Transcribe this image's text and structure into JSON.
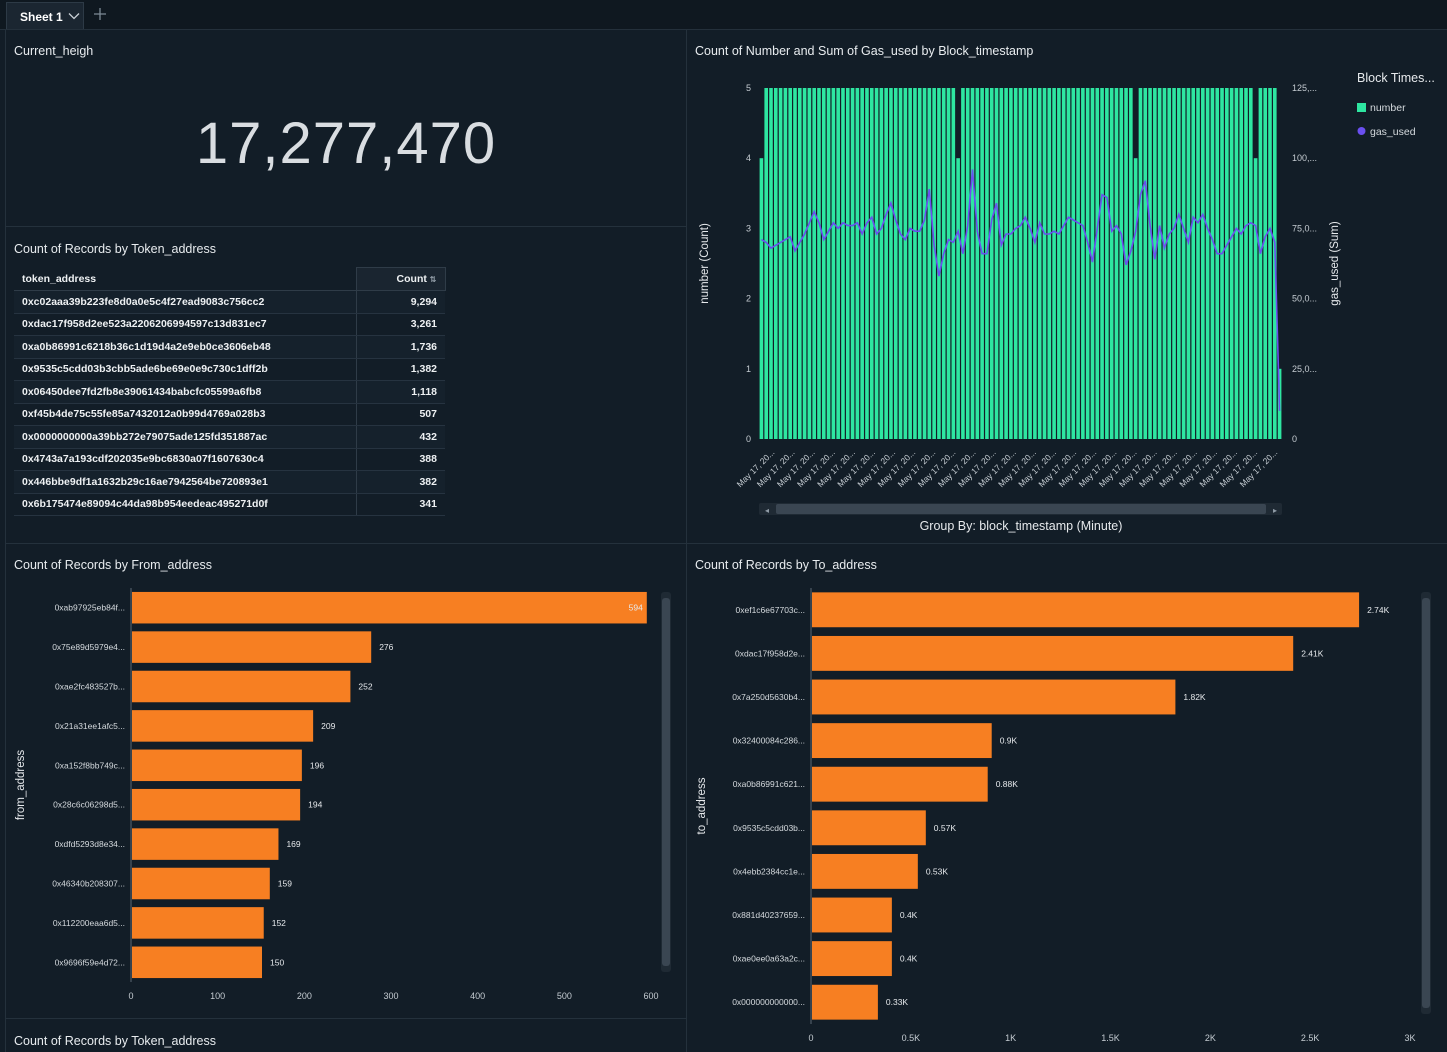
{
  "tabs": {
    "sheet_label": "Sheet 1"
  },
  "kpi": {
    "title": "Current_heigh",
    "value": "17,277,470"
  },
  "token_table": {
    "title": "Count of Records by Token_address",
    "col_address": "token_address",
    "col_count": "Count",
    "rows": [
      {
        "address": "0xc02aaa39b223fe8d0a0e5c4f27ead9083c756cc2",
        "count": "9,294"
      },
      {
        "address": "0xdac17f958d2ee523a2206206994597c13d831ec7",
        "count": "3,261"
      },
      {
        "address": "0xa0b86991c6218b36c1d19d4a2e9eb0ce3606eb48",
        "count": "1,736"
      },
      {
        "address": "0x9535c5cdd03b3cbb5ade6be69e0e9c730c1dff2b",
        "count": "1,382"
      },
      {
        "address": "0x06450dee7fd2fb8e39061434babcfc05599a6fb8",
        "count": "1,118"
      },
      {
        "address": "0xf45b4de75c55fe85a7432012a0b99d4769a028b3",
        "count": "507"
      },
      {
        "address": "0x0000000000a39bb272e79075ade125fd351887ac",
        "count": "432"
      },
      {
        "address": "0x4743a7a193cdf202035e9bc6830a07f1607630c4",
        "count": "388"
      },
      {
        "address": "0x446bbe9df1a1632b29c16ae7942564be720893e1",
        "count": "382"
      },
      {
        "address": "0x6b175474e89094c44da98b954eedeac495271d0f",
        "count": "341"
      }
    ]
  },
  "bottom_left_title": "Count of Records by Token_address",
  "colors": {
    "bar_green": "#2ee6a1",
    "line_purple": "#6a4ff0",
    "bar_orange": "#f77f22"
  },
  "chart_data": [
    {
      "type": "bar",
      "title": "Count of Number and Sum of Gas_used by Block_timestamp",
      "xlabel": "Group By: block_timestamp (Minute)",
      "ylabel": "number (Count)",
      "y2label": "gas_used (Sum)",
      "legend_title": "Block Times...",
      "legend": [
        "number",
        "gas_used"
      ],
      "x_tick_label": "May 17, 20...",
      "x_tick_count": 26,
      "ylim": [
        0,
        5
      ],
      "y_ticks": [
        "0",
        "1",
        "2",
        "3",
        "4",
        "5"
      ],
      "y2lim": [
        0,
        125
      ],
      "y2_ticks": [
        "0",
        "25,0...",
        "50,0...",
        "75,0...",
        "100,...",
        "125,..."
      ],
      "series": [
        {
          "name": "number",
          "values": [
            4,
            5,
            5,
            5,
            5,
            5,
            5,
            5,
            5,
            5,
            5,
            5,
            5,
            5,
            5,
            5,
            5,
            5,
            5,
            5,
            5,
            5,
            5,
            5,
            5,
            5,
            5,
            5,
            5,
            5,
            5,
            5,
            5,
            5,
            5,
            5,
            5,
            5,
            5,
            5,
            5,
            4,
            5,
            5,
            5,
            5,
            5,
            5,
            5,
            5,
            5,
            5,
            5,
            5,
            5,
            5,
            5,
            5,
            5,
            5,
            5,
            5,
            5,
            5,
            5,
            5,
            5,
            5,
            5,
            5,
            5,
            5,
            5,
            5,
            5,
            5,
            5,
            5,
            4,
            5,
            5,
            5,
            5,
            5,
            5,
            5,
            5,
            5,
            5,
            5,
            5,
            5,
            5,
            5,
            5,
            5,
            5,
            5,
            5,
            5,
            5,
            5,
            5,
            4,
            5,
            5,
            5,
            5,
            1
          ]
        },
        {
          "name": "gas_used",
          "values": [
            71,
            70,
            68,
            69,
            70,
            71,
            72,
            67,
            70,
            73,
            77,
            81,
            77,
            71,
            74,
            77,
            75,
            77,
            76,
            76,
            77,
            73,
            77,
            79,
            73,
            75,
            80,
            84,
            78,
            73,
            71,
            75,
            74,
            74,
            78,
            89,
            69,
            58,
            66,
            71,
            70,
            74,
            66,
            76,
            96,
            74,
            66,
            66,
            78,
            84,
            69,
            73,
            73,
            75,
            76,
            79,
            75,
            70,
            77,
            73,
            73,
            74,
            73,
            76,
            79,
            78,
            77,
            76,
            70,
            63,
            75,
            87,
            86,
            74,
            76,
            73,
            62,
            67,
            74,
            87,
            92,
            76,
            64,
            76,
            68,
            73,
            75,
            80,
            75,
            70,
            79,
            77,
            80,
            75,
            71,
            66,
            66,
            69,
            72,
            75,
            73,
            76,
            77,
            76,
            66,
            72,
            75,
            70,
            10
          ]
        }
      ]
    },
    {
      "type": "bar",
      "orientation": "horizontal",
      "title": "Count of Records by From_address",
      "ylabel": "from_address",
      "xlim": [
        0,
        600
      ],
      "x_ticks": [
        "0",
        "100",
        "200",
        "300",
        "400",
        "500",
        "600"
      ],
      "categories": [
        "0xab97925eb84f...",
        "0x75e89d5979e4...",
        "0xae2fc483527b...",
        "0x21a31ee1afc5...",
        "0xa152f8bb749c...",
        "0x28c6c06298d5...",
        "0xdfd5293d8e34...",
        "0x46340b208307...",
        "0x112200eaa6d5...",
        "0x9696f59e4d72..."
      ],
      "values": [
        594,
        276,
        252,
        209,
        196,
        194,
        169,
        159,
        152,
        150
      ],
      "data_labels": [
        "594",
        "276",
        "252",
        "209",
        "196",
        "194",
        "169",
        "159",
        "152",
        "150"
      ]
    },
    {
      "type": "bar",
      "orientation": "horizontal",
      "title": "Count of Records by To_address",
      "ylabel": "to_address",
      "xlim": [
        0,
        3000
      ],
      "x_ticks": [
        "0",
        "0.5K",
        "1K",
        "1.5K",
        "2K",
        "2.5K",
        "3K"
      ],
      "categories": [
        "0xef1c6e67703c...",
        "0xdac17f958d2e...",
        "0x7a250d5630b4...",
        "0x32400084c286...",
        "0xa0b86991c621...",
        "0x9535c5cdd03b...",
        "0x4ebb2384cc1e...",
        "0x881d40237659...",
        "0xae0ee0a63a2c...",
        "0x000000000000..."
      ],
      "values": [
        2740,
        2410,
        1820,
        900,
        880,
        570,
        530,
        400,
        400,
        330
      ],
      "data_labels": [
        "2.74K",
        "2.41K",
        "1.82K",
        "0.9K",
        "0.88K",
        "0.57K",
        "0.53K",
        "0.4K",
        "0.4K",
        "0.33K"
      ]
    }
  ]
}
